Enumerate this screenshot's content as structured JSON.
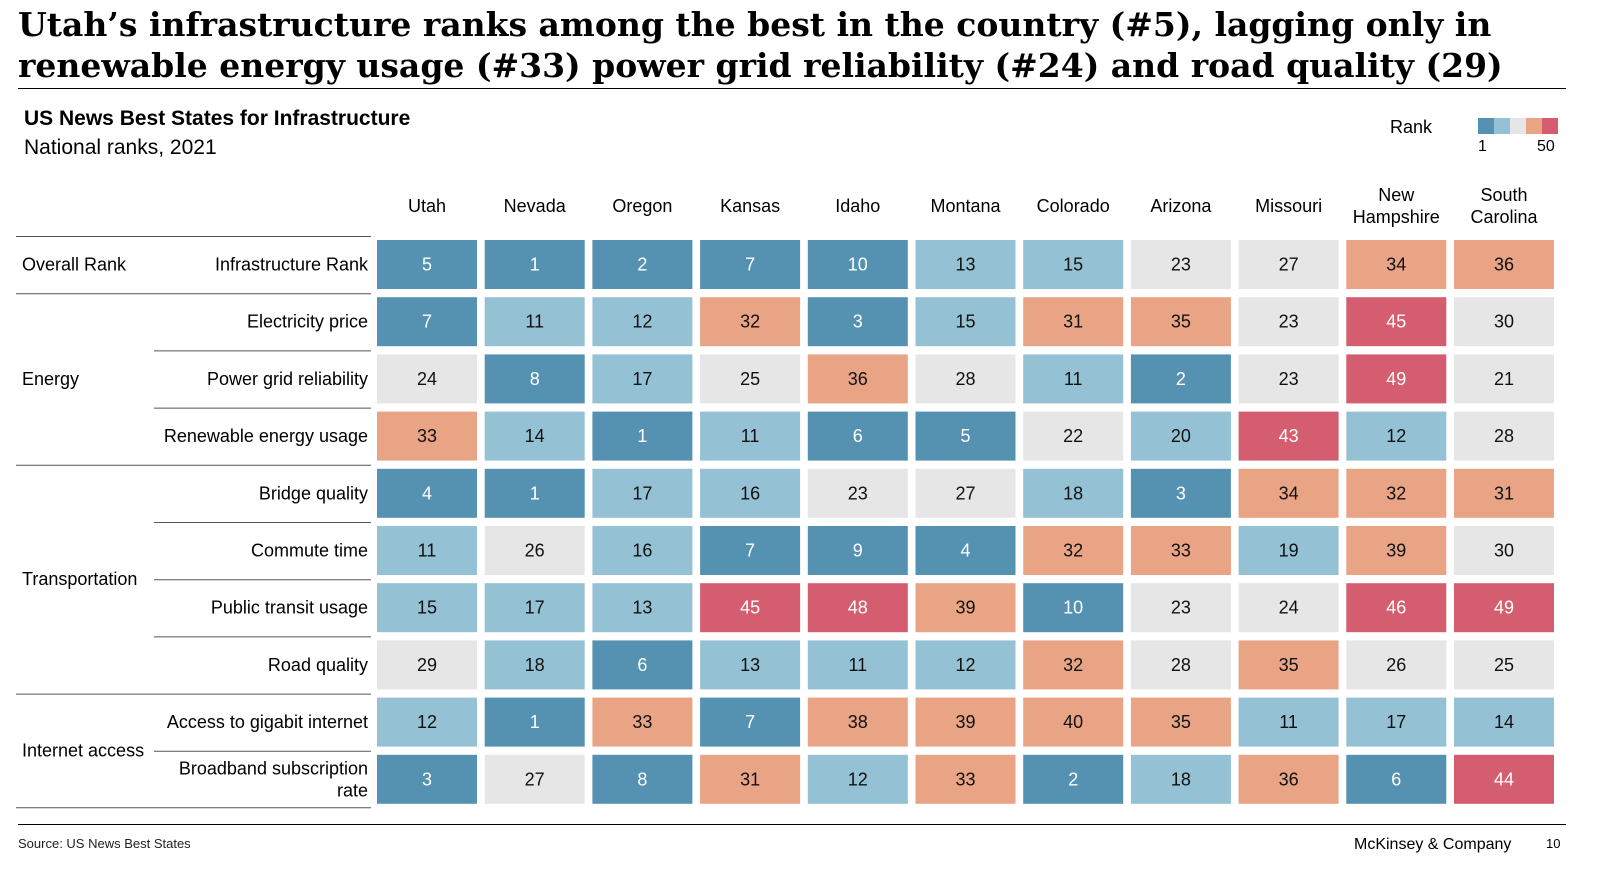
{
  "headline": {
    "line1": "Utah’s infrastructure ranks among the best in the country (#5), lagging only in",
    "line2": "renewable energy usage (#33) power grid reliability (#24) and road quality (29)"
  },
  "chart_data": {
    "type": "heatmap",
    "title": "US News Best States for Infrastructure",
    "subtitle": "National ranks, 2021",
    "legend": {
      "title": "Rank",
      "min": "1",
      "max": "50",
      "placement": "top-right"
    },
    "color_scale": {
      "colors": [
        "#5592b1",
        "#95c1d4",
        "#e6e6e6",
        "#e9a486",
        "#d45e6f"
      ],
      "thresholds": [
        10,
        20,
        30,
        40
      ]
    },
    "columns": [
      "Utah",
      "Nevada",
      "Oregon",
      "Kansas",
      "Idaho",
      "Montana",
      "Colorado",
      "Arizona",
      "Missouri",
      "New Hampshire",
      "South Carolina"
    ],
    "column_lines": [
      [
        "Utah"
      ],
      [
        "Nevada"
      ],
      [
        "Oregon"
      ],
      [
        "Kansas"
      ],
      [
        "Idaho"
      ],
      [
        "Montana"
      ],
      [
        "Colorado"
      ],
      [
        "Arizona"
      ],
      [
        "Missouri"
      ],
      [
        "New",
        "Hampshire"
      ],
      [
        "South",
        "Carolina"
      ]
    ],
    "groups": [
      {
        "name": "Overall Rank",
        "rows": [
          0
        ]
      },
      {
        "name": "Energy",
        "rows": [
          1,
          2,
          3
        ]
      },
      {
        "name": "Transportation",
        "rows": [
          4,
          5,
          6,
          7
        ]
      },
      {
        "name": "Internet access",
        "rows": [
          8,
          9
        ]
      }
    ],
    "rows": [
      {
        "label": "Infrastructure Rank",
        "label_lines": [
          "Infrastructure Rank"
        ],
        "values": [
          5,
          1,
          2,
          7,
          10,
          13,
          15,
          23,
          27,
          34,
          36
        ]
      },
      {
        "label": "Electricity price",
        "label_lines": [
          "Electricity price"
        ],
        "values": [
          7,
          11,
          12,
          32,
          3,
          15,
          31,
          35,
          23,
          45,
          30
        ]
      },
      {
        "label": "Power grid reliability",
        "label_lines": [
          "Power grid reliability"
        ],
        "values": [
          24,
          8,
          17,
          25,
          36,
          28,
          11,
          2,
          23,
          49,
          21
        ]
      },
      {
        "label": "Renewable energy usage",
        "label_lines": [
          "Renewable energy usage"
        ],
        "values": [
          33,
          14,
          1,
          11,
          6,
          5,
          22,
          20,
          43,
          12,
          28
        ]
      },
      {
        "label": "Bridge quality",
        "label_lines": [
          "Bridge quality"
        ],
        "values": [
          4,
          1,
          17,
          16,
          23,
          27,
          18,
          3,
          34,
          32,
          31
        ]
      },
      {
        "label": "Commute time",
        "label_lines": [
          "Commute time"
        ],
        "values": [
          11,
          26,
          16,
          7,
          9,
          4,
          32,
          33,
          19,
          39,
          30
        ]
      },
      {
        "label": "Public transit usage",
        "label_lines": [
          "Public transit usage"
        ],
        "values": [
          15,
          17,
          13,
          45,
          48,
          39,
          10,
          23,
          24,
          46,
          49
        ]
      },
      {
        "label": "Road quality",
        "label_lines": [
          "Road quality"
        ],
        "values": [
          29,
          18,
          6,
          13,
          11,
          12,
          32,
          28,
          35,
          26,
          25
        ]
      },
      {
        "label": "Access to gigabit internet",
        "label_lines": [
          "Access to gigabit internet"
        ],
        "values": [
          12,
          1,
          33,
          7,
          38,
          39,
          40,
          35,
          11,
          17,
          14
        ]
      },
      {
        "label": "Broadband subscription rate",
        "label_lines": [
          "Broadband subscription",
          "rate"
        ],
        "values": [
          3,
          27,
          8,
          31,
          12,
          33,
          2,
          18,
          36,
          6,
          44
        ]
      }
    ]
  },
  "footer": {
    "source": "Source: US News Best States",
    "brand": "McKinsey & Company",
    "page": "10"
  }
}
